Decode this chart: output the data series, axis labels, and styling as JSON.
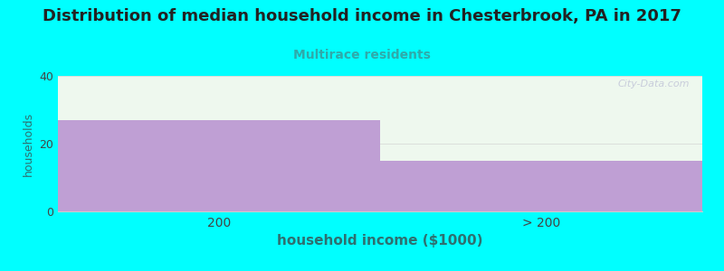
{
  "title": "Distribution of median household income in Chesterbrook, PA in 2017",
  "subtitle": "Multirace residents",
  "categories": [
    "200",
    "> 200"
  ],
  "values": [
    27,
    15
  ],
  "bar_color": "#bf9fd4",
  "background_color": "#00ffff",
  "plot_bg_color": "#eef8ee",
  "title_color": "#222222",
  "subtitle_color": "#2eaaaa",
  "axis_label_color": "#2e7070",
  "tick_color": "#444444",
  "xlabel": "household income ($1000)",
  "ylabel": "households",
  "ylim": [
    0,
    40
  ],
  "yticks": [
    0,
    20,
    40
  ],
  "watermark": "City-Data.com",
  "title_fontsize": 13,
  "subtitle_fontsize": 10,
  "xlabel_fontsize": 11,
  "ylabel_fontsize": 9
}
